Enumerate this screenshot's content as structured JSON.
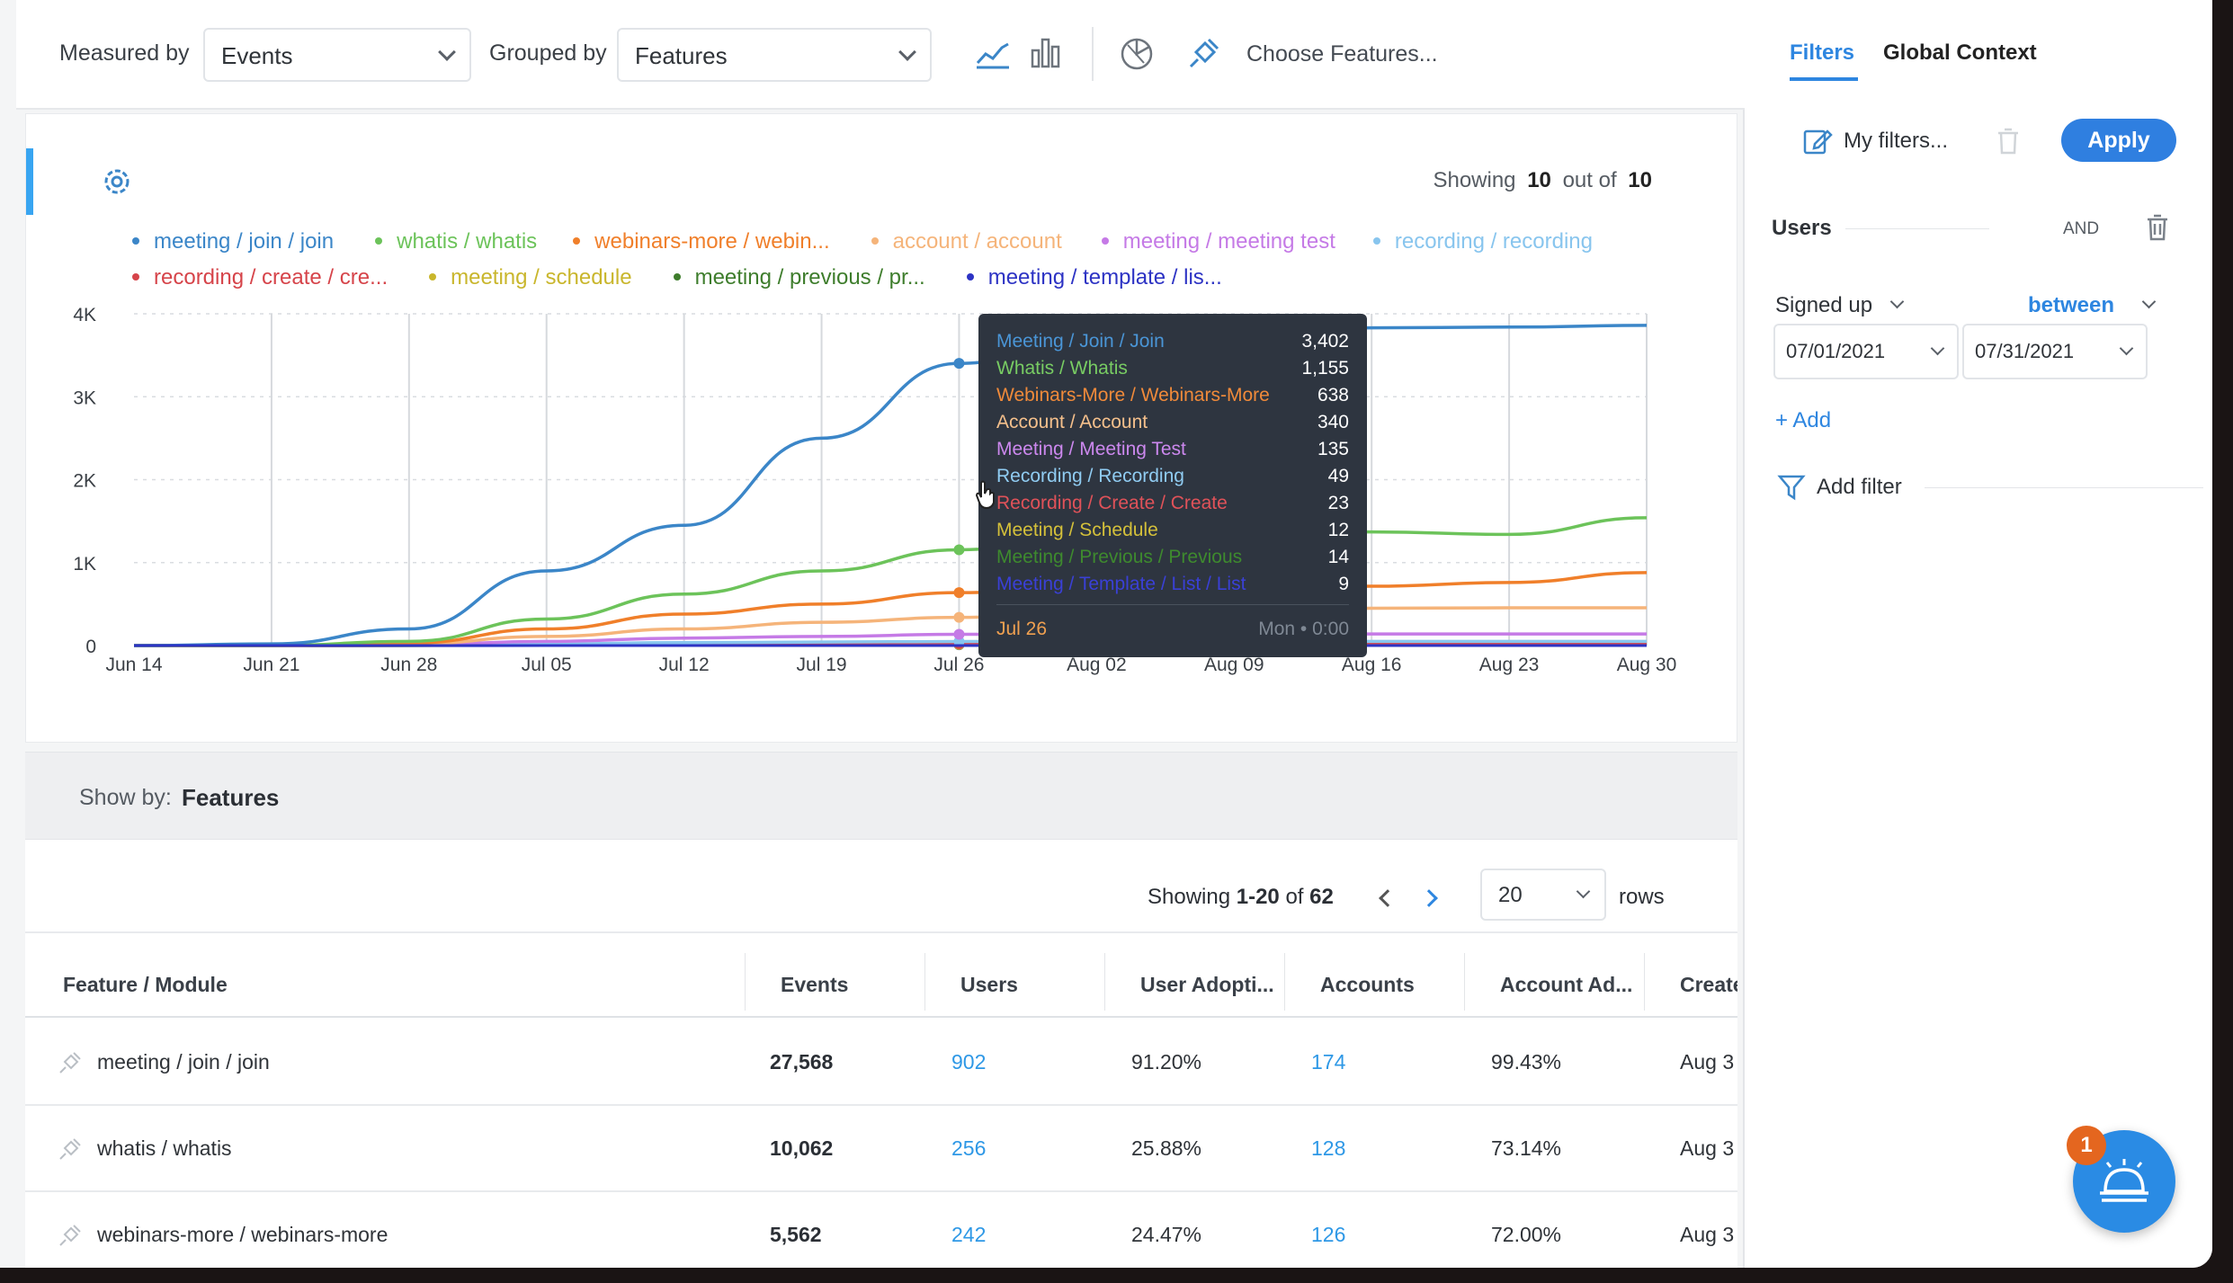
{
  "toolbar": {
    "measured_by_label": "Measured by",
    "measured_by_value": "Events",
    "grouped_by_label": "Grouped by",
    "grouped_by_value": "Features",
    "choose_features": "Choose Features..."
  },
  "chart_header": {
    "showing_prefix": "Showing",
    "showing_count": "10",
    "showing_mid": "out of",
    "showing_total": "10"
  },
  "legend": {
    "row1": [
      {
        "label": "meeting / join / join",
        "color": "#3b86c8"
      },
      {
        "label": "whatis / whatis",
        "color": "#6cc35a"
      },
      {
        "label": "webinars-more / webin...",
        "color": "#f07f2a"
      },
      {
        "label": "account / account",
        "color": "#f5b47a"
      },
      {
        "label": "meeting / meeting test",
        "color": "#c57ae6"
      },
      {
        "label": "recording / recording",
        "color": "#88c5ee"
      }
    ],
    "row2": [
      {
        "label": "recording / create / cre...",
        "color": "#d6444a"
      },
      {
        "label": "meeting / schedule",
        "color": "#c9b62c"
      },
      {
        "label": "meeting / previous / pr...",
        "color": "#3e7d2c"
      },
      {
        "label": "meeting / template / lis...",
        "color": "#2d33c4"
      }
    ]
  },
  "chart_data": {
    "type": "line",
    "x": [
      "Jun 14",
      "Jun 21",
      "Jun 28",
      "Jul 05",
      "Jul 12",
      "Jul 19",
      "Jul 26",
      "Aug 02",
      "Aug 09",
      "Aug 16",
      "Aug 23",
      "Aug 30"
    ],
    "y_ticks": [
      "0",
      "1K",
      "2K",
      "3K",
      "4K"
    ],
    "ylim": [
      0,
      4000
    ],
    "series": [
      {
        "name": "meeting / join / join",
        "color": "#3b86c8",
        "values": [
          0,
          20,
          200,
          900,
          1450,
          2500,
          3402,
          3750,
          3800,
          3830,
          3840,
          3860
        ]
      },
      {
        "name": "whatis / whatis",
        "color": "#6cc35a",
        "values": [
          0,
          0,
          50,
          320,
          620,
          900,
          1155,
          1350,
          1390,
          1370,
          1340,
          1540
        ]
      },
      {
        "name": "webinars-more / webin...",
        "color": "#f07f2a",
        "values": [
          0,
          0,
          30,
          200,
          380,
          500,
          638,
          700,
          710,
          715,
          760,
          880
        ]
      },
      {
        "name": "account / account",
        "color": "#f5b47a",
        "values": [
          0,
          0,
          20,
          110,
          200,
          280,
          340,
          420,
          440,
          450,
          455,
          455
        ]
      },
      {
        "name": "meeting / meeting test",
        "color": "#c57ae6",
        "values": [
          0,
          0,
          10,
          50,
          90,
          110,
          135,
          140,
          140,
          140,
          140,
          140
        ]
      },
      {
        "name": "recording / recording",
        "color": "#88c5ee",
        "values": [
          0,
          0,
          5,
          20,
          35,
          42,
          49,
          50,
          50,
          50,
          50,
          50
        ]
      },
      {
        "name": "recording / create / cre...",
        "color": "#d6444a",
        "values": [
          0,
          0,
          3,
          10,
          16,
          20,
          23,
          24,
          24,
          24,
          24,
          24
        ]
      },
      {
        "name": "meeting / schedule",
        "color": "#c9b62c",
        "values": [
          0,
          0,
          2,
          5,
          8,
          10,
          12,
          12,
          12,
          12,
          12,
          12
        ]
      },
      {
        "name": "meeting / previous / pr...",
        "color": "#3e7d2c",
        "values": [
          0,
          0,
          2,
          6,
          9,
          12,
          14,
          14,
          14,
          14,
          14,
          14
        ]
      },
      {
        "name": "meeting / template / lis...",
        "color": "#2d33c4",
        "values": [
          0,
          0,
          1,
          3,
          5,
          7,
          9,
          9,
          9,
          9,
          9,
          9
        ]
      }
    ],
    "grid": true,
    "legend_position": "top"
  },
  "tooltip": {
    "rows": [
      {
        "label": "Meeting / Join / Join",
        "value": "3,402",
        "color": "#4a95d6"
      },
      {
        "label": "Whatis / Whatis",
        "value": "1,155",
        "color": "#78cc63"
      },
      {
        "label": "Webinars-More / Webinars-More",
        "value": "638",
        "color": "#f08a3a"
      },
      {
        "label": "Account / Account",
        "value": "340",
        "color": "#f5c08c"
      },
      {
        "label": "Meeting / Meeting Test",
        "value": "135",
        "color": "#cc88ee"
      },
      {
        "label": "Recording / Recording",
        "value": "49",
        "color": "#90ccf2"
      },
      {
        "label": "Recording / Create / Create",
        "value": "23",
        "color": "#e05259"
      },
      {
        "label": "Meeting / Schedule",
        "value": "12",
        "color": "#d4c03a"
      },
      {
        "label": "Meeting / Previous / Previous",
        "value": "14",
        "color": "#3e8a2e"
      },
      {
        "label": "Meeting / Template / List / List",
        "value": "9",
        "color": "#3a40d6"
      }
    ],
    "date": "Jul 26",
    "weekday": "Mon",
    "time": "0:00"
  },
  "showby": {
    "label": "Show by:",
    "value": "Features"
  },
  "pager": {
    "showing_prefix": "Showing",
    "range": "1-20",
    "of_label": "of",
    "total": "62",
    "rows_value": "20",
    "rows_label": "rows"
  },
  "table": {
    "headers": [
      "Feature / Module",
      "Events",
      "Users",
      "User Adopti...",
      "Accounts",
      "Account Ad...",
      "Create"
    ],
    "rows": [
      {
        "feature": "meeting / join / join",
        "events": "27,568",
        "users": "902",
        "user_adoption": "91.20%",
        "accounts": "174",
        "account_adoption": "99.43%",
        "created": "Aug 3"
      },
      {
        "feature": "whatis / whatis",
        "events": "10,062",
        "users": "256",
        "user_adoption": "25.88%",
        "accounts": "128",
        "account_adoption": "73.14%",
        "created": "Aug 3"
      },
      {
        "feature": "webinars-more / webinars-more",
        "events": "5,562",
        "users": "242",
        "user_adoption": "24.47%",
        "accounts": "126",
        "account_adoption": "72.00%",
        "created": "Aug 3"
      }
    ]
  },
  "sidebar": {
    "tab_filters": "Filters",
    "tab_global": "Global Context",
    "my_filters": "My filters...",
    "apply": "Apply",
    "users_label": "Users",
    "and_label": "AND",
    "signed_up": "Signed up",
    "between": "between",
    "date_from": "07/01/2021",
    "date_to": "07/31/2021",
    "add": "+ Add",
    "add_filter": "Add filter"
  },
  "notification": {
    "badge": "1"
  }
}
